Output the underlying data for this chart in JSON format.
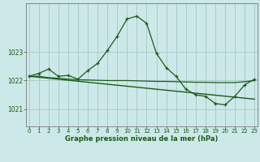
{
  "title": "Graphe pression niveau de la mer (hPa)",
  "background_color": "#cce8e8",
  "grid_color": "#aacccc",
  "line_color": "#1a5c1a",
  "x_ticks": [
    0,
    1,
    2,
    3,
    4,
    5,
    6,
    7,
    8,
    9,
    10,
    11,
    12,
    13,
    14,
    15,
    16,
    17,
    18,
    19,
    20,
    21,
    22,
    23
  ],
  "y_ticks": [
    1021,
    1022,
    1023
  ],
  "ylim": [
    1020.4,
    1024.7
  ],
  "xlim": [
    -0.3,
    23.3
  ],
  "series1_x": [
    0,
    1,
    2,
    3,
    4,
    5,
    6,
    7,
    8,
    9,
    10,
    11,
    12,
    13,
    14,
    15,
    16,
    17,
    18,
    19,
    20,
    21,
    22,
    23
  ],
  "series1_y": [
    1022.15,
    1022.25,
    1022.4,
    1022.15,
    1022.18,
    1022.05,
    1022.35,
    1022.6,
    1023.05,
    1023.55,
    1024.15,
    1024.25,
    1024.0,
    1022.95,
    1022.45,
    1022.15,
    1021.7,
    1021.5,
    1021.45,
    1021.2,
    1021.15,
    1021.45,
    1021.85,
    1022.05
  ],
  "series2_x": [
    0,
    1,
    2,
    3,
    4,
    5,
    6,
    7,
    8,
    9,
    10,
    11,
    12,
    13,
    14,
    15,
    16,
    17,
    18,
    19,
    20,
    21,
    22,
    23
  ],
  "series2_y": [
    1022.15,
    1022.15,
    1022.1,
    1022.08,
    1022.05,
    1022.03,
    1022.02,
    1022.01,
    1022.0,
    1022.0,
    1022.0,
    1021.99,
    1021.98,
    1021.97,
    1021.97,
    1021.96,
    1021.95,
    1021.94,
    1021.94,
    1021.93,
    1021.93,
    1021.93,
    1021.96,
    1022.0
  ],
  "series3_x": [
    0,
    23
  ],
  "series3_y": [
    1022.15,
    1021.35
  ]
}
